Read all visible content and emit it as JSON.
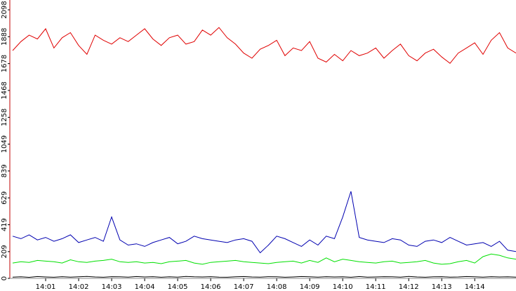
{
  "chart_data": {
    "type": "line",
    "x": [
      "14:00:00",
      "14:00:15",
      "14:00:30",
      "14:00:45",
      "14:01:00",
      "14:01:15",
      "14:01:30",
      "14:01:45",
      "14:02:00",
      "14:02:15",
      "14:02:30",
      "14:02:45",
      "14:03:00",
      "14:03:15",
      "14:03:30",
      "14:03:45",
      "14:04:00",
      "14:04:15",
      "14:04:30",
      "14:04:45",
      "14:05:00",
      "14:05:15",
      "14:05:30",
      "14:05:45",
      "14:06:00",
      "14:06:15",
      "14:06:30",
      "14:06:45",
      "14:07:00",
      "14:07:15",
      "14:07:30",
      "14:07:45",
      "14:08:00",
      "14:08:15",
      "14:08:30",
      "14:08:45",
      "14:09:00",
      "14:09:15",
      "14:09:30",
      "14:09:45",
      "14:10:00",
      "14:10:15",
      "14:10:30",
      "14:10:45",
      "14:11:00",
      "14:11:15",
      "14:11:30",
      "14:11:45",
      "14:12:00",
      "14:12:15",
      "14:12:30",
      "14:12:45",
      "14:13:00",
      "14:13:15",
      "14:13:30",
      "14:13:45",
      "14:14:00",
      "14:14:15",
      "14:14:30",
      "14:14:45",
      "14:15:00",
      "14:15:15"
    ],
    "series": [
      {
        "color": "#e00000",
        "values": [
          1780,
          1850,
          1900,
          1870,
          1950,
          1800,
          1880,
          1920,
          1820,
          1750,
          1900,
          1860,
          1830,
          1880,
          1850,
          1900,
          1950,
          1870,
          1820,
          1880,
          1900,
          1830,
          1850,
          1940,
          1900,
          1960,
          1880,
          1830,
          1760,
          1720,
          1790,
          1820,
          1860,
          1740,
          1800,
          1780,
          1850,
          1720,
          1690,
          1750,
          1700,
          1780,
          1740,
          1760,
          1800,
          1720,
          1780,
          1830,
          1740,
          1700,
          1760,
          1790,
          1730,
          1680,
          1760,
          1800,
          1840,
          1750,
          1860,
          1920,
          1800,
          1760
        ]
      },
      {
        "color": "#0000b0",
        "values": [
          330,
          310,
          340,
          300,
          320,
          290,
          310,
          340,
          280,
          300,
          320,
          290,
          480,
          300,
          260,
          270,
          250,
          280,
          300,
          320,
          270,
          290,
          330,
          310,
          300,
          290,
          280,
          300,
          310,
          290,
          200,
          260,
          330,
          310,
          280,
          250,
          300,
          260,
          330,
          310,
          480,
          680,
          320,
          300,
          290,
          280,
          310,
          300,
          260,
          250,
          290,
          300,
          280,
          320,
          290,
          260,
          270,
          280,
          250,
          290,
          220,
          210
        ]
      },
      {
        "color": "#00e000",
        "values": [
          120,
          130,
          125,
          140,
          135,
          130,
          120,
          145,
          130,
          125,
          135,
          140,
          150,
          130,
          125,
          130,
          120,
          125,
          115,
          130,
          135,
          140,
          120,
          110,
          125,
          130,
          135,
          140,
          130,
          125,
          120,
          115,
          125,
          130,
          135,
          120,
          140,
          125,
          160,
          130,
          150,
          140,
          130,
          125,
          120,
          130,
          135,
          120,
          125,
          130,
          140,
          120,
          110,
          115,
          130,
          140,
          120,
          170,
          190,
          180,
          160,
          150
        ]
      },
      {
        "color": "#000000",
        "values": [
          10,
          12,
          8,
          14,
          11,
          9,
          13,
          10,
          12,
          15,
          11,
          9,
          13,
          12,
          10,
          14,
          11,
          13,
          9,
          12,
          10,
          15,
          12,
          11,
          13,
          10,
          9,
          12,
          14,
          11,
          10,
          13,
          12,
          9,
          11,
          14,
          12,
          10,
          13,
          11,
          12,
          9,
          14,
          10,
          11,
          13,
          12,
          10,
          15,
          11,
          9,
          12,
          13,
          10,
          11,
          14,
          12,
          10,
          13,
          11,
          12,
          10
        ]
      }
    ],
    "xlim": [
      "14:00:00",
      "14:15:15"
    ],
    "xticks": [
      "14:01",
      "14:02",
      "14:03",
      "14:04",
      "14:05",
      "14:06",
      "14:07",
      "14:08",
      "14:09",
      "14:10",
      "14:11",
      "14:12",
      "14:13",
      "14:14"
    ],
    "ylim": [
      0,
      2098
    ],
    "yticks": [
      0,
      209,
      419,
      629,
      839,
      1049,
      1258,
      1468,
      1678,
      1888,
      2098
    ]
  }
}
